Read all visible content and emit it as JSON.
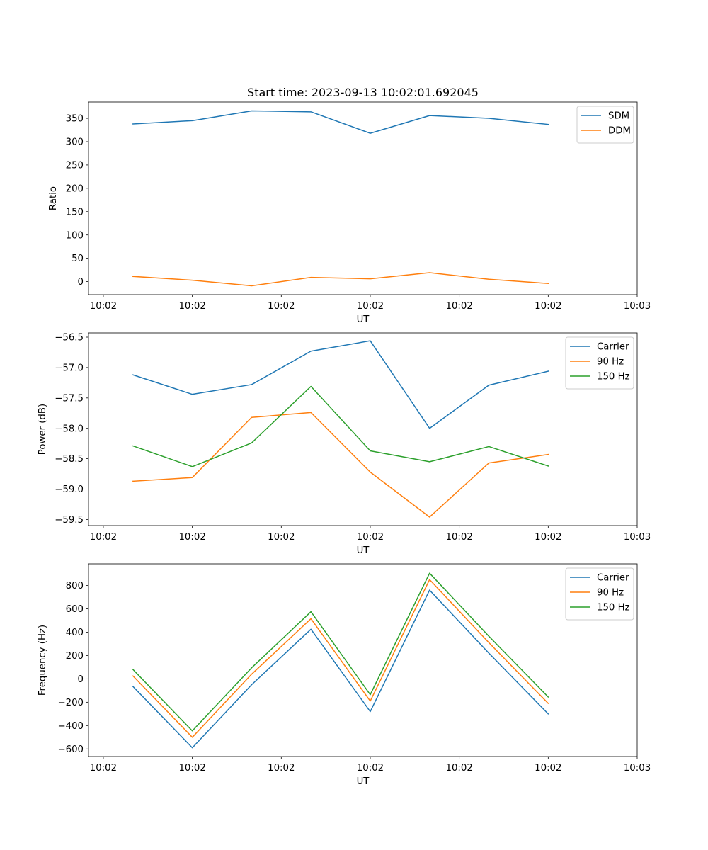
{
  "figure_title": "Start time: 2023-09-13 10:02:01.692045",
  "colors": {
    "blue": "#1f77b4",
    "orange": "#ff7f0e",
    "green": "#2ca02c"
  },
  "chart_data": [
    {
      "type": "line",
      "title": "Start time: 2023-09-13 10:02:01.692045",
      "xlabel": "UT",
      "ylabel": "Ratio",
      "xlim": [
        -0.75,
        8.5
      ],
      "ylim": [
        -28,
        385
      ],
      "x": [
        0,
        1,
        2,
        3,
        4,
        5,
        6,
        7
      ],
      "xticks": [
        -0.5,
        1,
        2.5,
        4,
        5.5,
        7,
        8.5
      ],
      "xtick_labels": [
        "10:02",
        "10:02",
        "10:02",
        "10:02",
        "10:02",
        "10:02",
        "10:03"
      ],
      "yticks": [
        0,
        50,
        100,
        150,
        200,
        250,
        300,
        350
      ],
      "ytick_labels": [
        "0",
        "50",
        "100",
        "150",
        "200",
        "250",
        "300",
        "350"
      ],
      "legend": "top-right",
      "series": [
        {
          "name": "SDM",
          "color": "#1f77b4",
          "values": [
            338,
            345,
            366,
            364,
            318,
            356,
            350,
            337
          ]
        },
        {
          "name": "DDM",
          "color": "#ff7f0e",
          "values": [
            11,
            3,
            -9,
            9,
            6,
            19,
            5,
            -4
          ]
        }
      ]
    },
    {
      "type": "line",
      "xlabel": "UT",
      "ylabel": "Power (dB)",
      "xlim": [
        -0.75,
        8.5
      ],
      "ylim": [
        -59.6,
        -56.43
      ],
      "x": [
        0,
        1,
        2,
        3,
        4,
        5,
        6,
        7
      ],
      "xticks": [
        -0.5,
        1,
        2.5,
        4,
        5.5,
        7,
        8.5
      ],
      "xtick_labels": [
        "10:02",
        "10:02",
        "10:02",
        "10:02",
        "10:02",
        "10:02",
        "10:03"
      ],
      "yticks": [
        -59.5,
        -59.0,
        -58.5,
        -58.0,
        -57.5,
        -57.0,
        -56.5
      ],
      "ytick_labels": [
        "−59.5",
        "−59.0",
        "−58.5",
        "−58.0",
        "−57.5",
        "−57.0",
        "−56.5"
      ],
      "legend": "top-right",
      "series": [
        {
          "name": "Carrier",
          "color": "#1f77b4",
          "values": [
            -57.12,
            -57.44,
            -57.28,
            -56.73,
            -56.56,
            -58.0,
            -57.29,
            -57.06
          ]
        },
        {
          "name": "90 Hz",
          "color": "#ff7f0e",
          "values": [
            -58.87,
            -58.81,
            -57.82,
            -57.74,
            -58.72,
            -59.46,
            -58.57,
            -58.43
          ]
        },
        {
          "name": "150 Hz",
          "color": "#2ca02c",
          "values": [
            -58.29,
            -58.63,
            -58.24,
            -57.31,
            -58.37,
            -58.55,
            -58.3,
            -58.62
          ]
        }
      ]
    },
    {
      "type": "line",
      "xlabel": "UT",
      "ylabel": "Frequency (Hz)",
      "xlim": [
        -0.75,
        8.5
      ],
      "ylim": [
        -665,
        985
      ],
      "x": [
        0,
        1,
        2,
        3,
        4,
        5,
        6,
        7
      ],
      "xticks": [
        -0.5,
        1,
        2.5,
        4,
        5.5,
        7,
        8.5
      ],
      "xtick_labels": [
        "10:02",
        "10:02",
        "10:02",
        "10:02",
        "10:02",
        "10:02",
        "10:03"
      ],
      "yticks": [
        -600,
        -400,
        -200,
        0,
        200,
        400,
        600,
        800
      ],
      "ytick_labels": [
        "−600",
        "−400",
        "−200",
        "0",
        "200",
        "400",
        "600",
        "800"
      ],
      "legend": "top-right",
      "series": [
        {
          "name": "Carrier",
          "color": "#1f77b4",
          "values": [
            -65,
            -590,
            -50,
            425,
            -280,
            760,
            220,
            -300
          ]
        },
        {
          "name": "90 Hz",
          "color": "#ff7f0e",
          "values": [
            25,
            -500,
            40,
            515,
            -190,
            850,
            310,
            -210
          ]
        },
        {
          "name": "150 Hz",
          "color": "#2ca02c",
          "values": [
            80,
            -445,
            95,
            575,
            -135,
            905,
            365,
            -155
          ]
        }
      ]
    }
  ]
}
